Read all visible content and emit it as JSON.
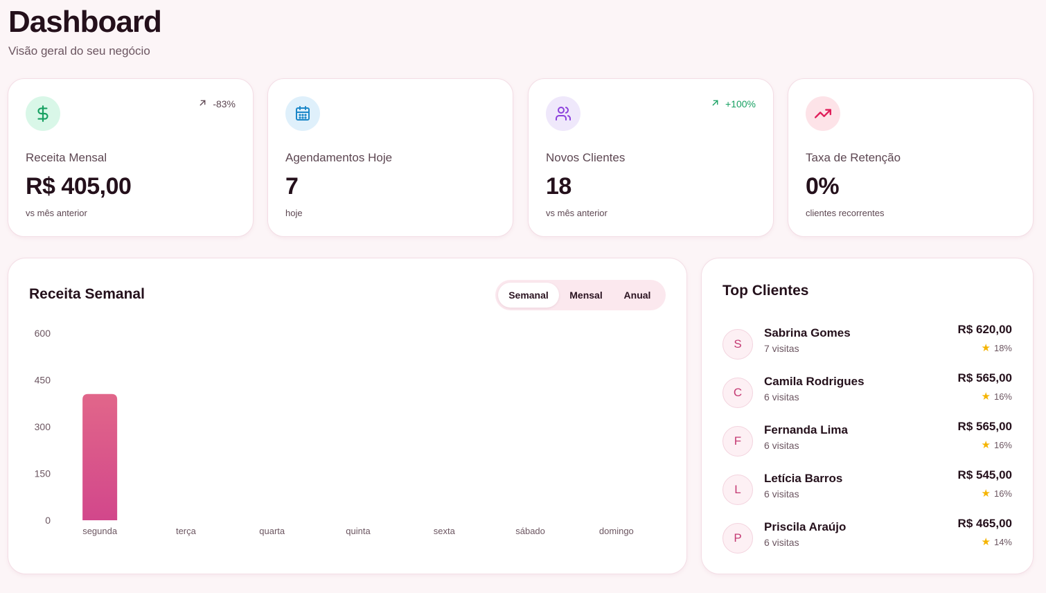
{
  "header": {
    "title": "Dashboard",
    "subtitle": "Visão geral do seu negócio"
  },
  "stats": [
    {
      "icon": "dollar-icon",
      "label": "Receita Mensal",
      "value": "R$ 405,00",
      "sub": "vs mês anterior",
      "trend": "-83%",
      "trend_color": "#5c4651",
      "icon_bg": "#d9f7e8",
      "icon_color": "#16a061"
    },
    {
      "icon": "calendar-icon",
      "label": "Agendamentos Hoje",
      "value": "7",
      "sub": "hoje",
      "trend": "",
      "icon_bg": "#dff0fb",
      "icon_color": "#1a86c8"
    },
    {
      "icon": "users-icon",
      "label": "Novos Clientes",
      "value": "18",
      "sub": "vs mês anterior",
      "trend": "+100%",
      "trend_color": "#16a061",
      "icon_bg": "#efe8fb",
      "icon_color": "#8b3fdc"
    },
    {
      "icon": "trending-up-icon",
      "label": "Taxa de Retenção",
      "value": "0%",
      "sub": "clientes recorrentes",
      "trend": "",
      "icon_bg": "#fde3e8",
      "icon_color": "#e01e5a"
    }
  ],
  "chart_panel": {
    "title": "Receita Semanal",
    "tabs": [
      {
        "label": "Semanal",
        "active": true
      },
      {
        "label": "Mensal",
        "active": false
      },
      {
        "label": "Anual",
        "active": false
      }
    ]
  },
  "chart_data": {
    "type": "bar",
    "title": "Receita Semanal",
    "categories": [
      "segunda",
      "terça",
      "quarta",
      "quinta",
      "sexta",
      "sábado",
      "domingo"
    ],
    "values": [
      405,
      0,
      0,
      0,
      0,
      0,
      0
    ],
    "yticks": [
      0,
      150,
      300,
      450,
      600
    ],
    "ylim": [
      0,
      600
    ],
    "grid": false,
    "bar_gradient": [
      "#e1668a",
      "#d2478b"
    ]
  },
  "top_clients": {
    "title": "Top Clientes",
    "items": [
      {
        "initial": "S",
        "name": "Sabrina Gomes",
        "visits": "7 visitas",
        "amount": "R$ 620,00",
        "pct": "18%"
      },
      {
        "initial": "C",
        "name": "Camila Rodrigues",
        "visits": "6 visitas",
        "amount": "R$ 565,00",
        "pct": "16%"
      },
      {
        "initial": "F",
        "name": "Fernanda Lima",
        "visits": "6 visitas",
        "amount": "R$ 565,00",
        "pct": "16%"
      },
      {
        "initial": "L",
        "name": "Letícia Barros",
        "visits": "6 visitas",
        "amount": "R$ 545,00",
        "pct": "16%"
      },
      {
        "initial": "P",
        "name": "Priscila Araújo",
        "visits": "6 visitas",
        "amount": "R$ 465,00",
        "pct": "14%"
      }
    ]
  }
}
